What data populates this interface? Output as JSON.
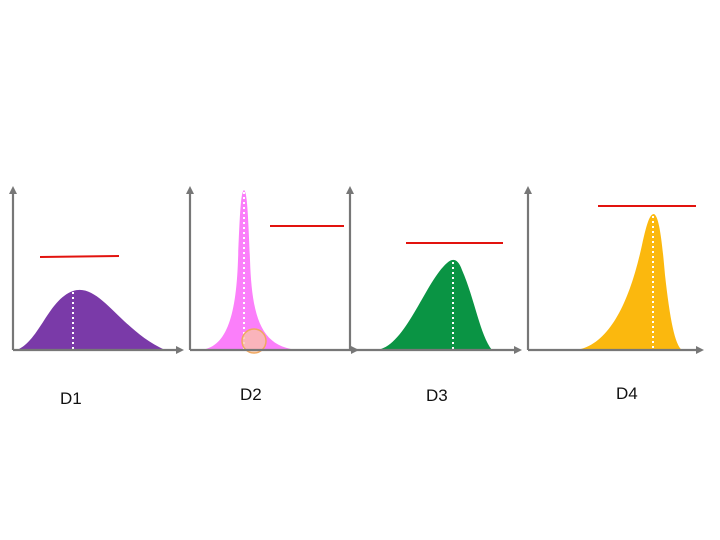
{
  "panels": [
    {
      "label": "D1",
      "fill": "#7a3aa8"
    },
    {
      "label": "D2",
      "fill": "#fb7ffa",
      "marker_fill": "#f9c6a6",
      "marker_stroke": "#f0a860"
    },
    {
      "label": "D3",
      "fill": "#0a9444"
    },
    {
      "label": "D4",
      "fill": "#fbb80e"
    }
  ],
  "colors": {
    "axis": "#777777",
    "reference_line": "#e2130e",
    "mode_marker": "#ffffff"
  }
}
